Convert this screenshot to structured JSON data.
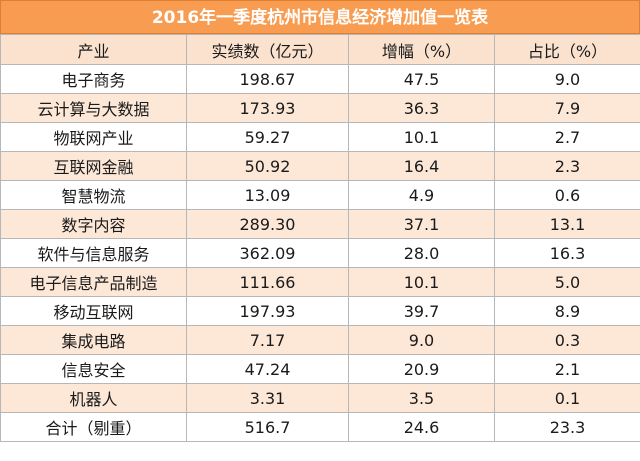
{
  "title": "2016年一季度杭州市信息经济增加值一览表",
  "colors": {
    "title_bg": "#f79c50",
    "stripe": "#fde8d8",
    "header_bg": "#fbe2cf"
  },
  "headers": [
    "产业",
    "实绩数（亿元）",
    "增幅（%）",
    "占比（%）"
  ],
  "rows": [
    [
      "电子商务",
      "198.67",
      "47.5",
      "9.0"
    ],
    [
      "云计算与大数据",
      "173.93",
      "36.3",
      "7.9"
    ],
    [
      "物联网产业",
      "59.27",
      "10.1",
      "2.7"
    ],
    [
      "互联网金融",
      "50.92",
      "16.4",
      "2.3"
    ],
    [
      "智慧物流",
      "13.09",
      "4.9",
      "0.6"
    ],
    [
      "数字内容",
      "289.30",
      "37.1",
      "13.1"
    ],
    [
      "软件与信息服务",
      "362.09",
      "28.0",
      "16.3"
    ],
    [
      "电子信息产品制造",
      "111.66",
      "10.1",
      "5.0"
    ],
    [
      "移动互联网",
      "197.93",
      "39.7",
      "8.9"
    ],
    [
      "集成电路",
      "7.17",
      "9.0",
      "0.3"
    ],
    [
      "信息安全",
      "47.24",
      "20.9",
      "2.1"
    ],
    [
      "机器人",
      "3.31",
      "3.5",
      "0.1"
    ],
    [
      "合计（剔重）",
      "516.7",
      "24.6",
      "23.3"
    ]
  ]
}
